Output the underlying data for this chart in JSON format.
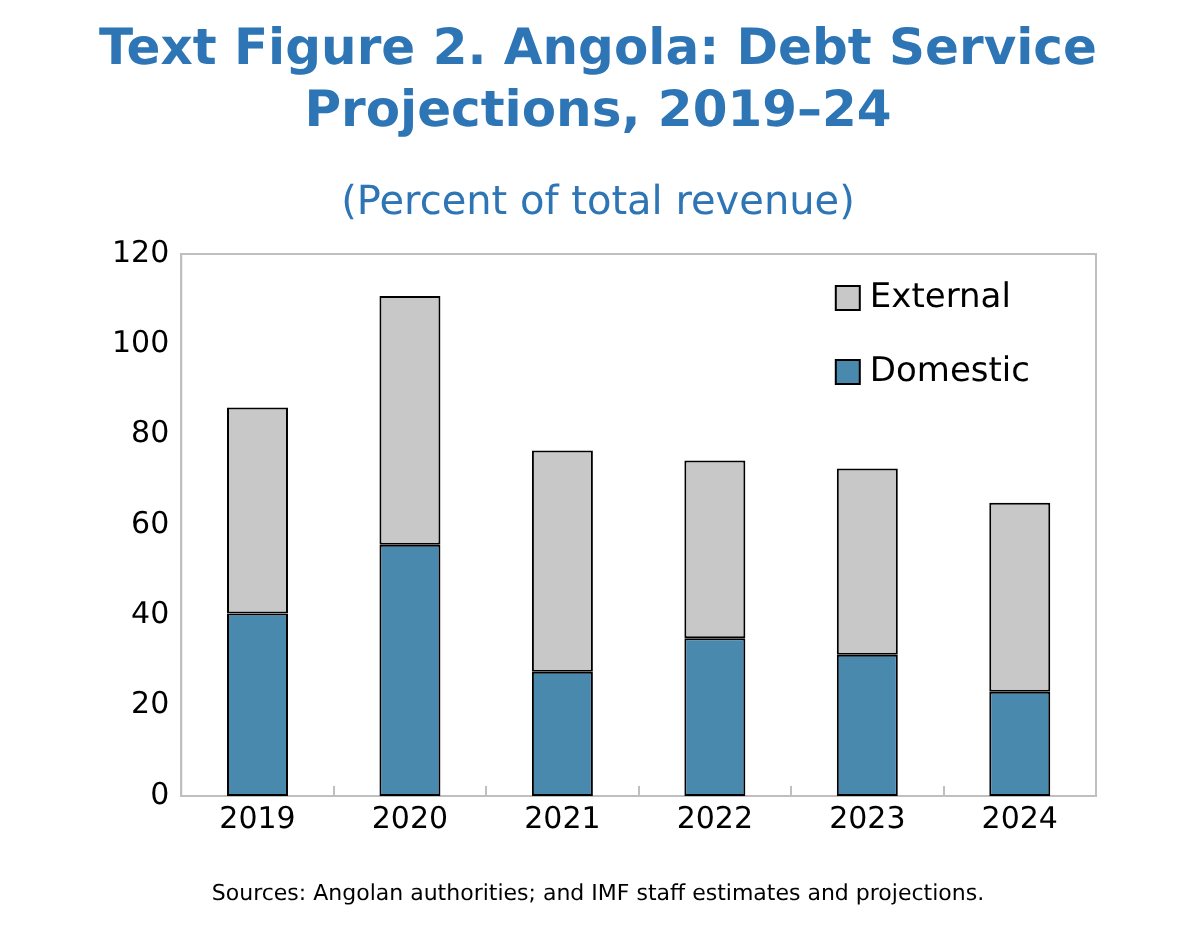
{
  "chart_data": {
    "type": "bar",
    "title": "Text Figure 2. Angola: Debt Service Projections, 2019–24",
    "subtitle": "(Percent of total revenue)",
    "categories": [
      "2019",
      "2020",
      "2021",
      "2022",
      "2023",
      "2024"
    ],
    "stacked": true,
    "series": [
      {
        "name": "Domestic",
        "color": "#4a89ae",
        "values": [
          40.4,
          55.6,
          27.5,
          34.9,
          31.3,
          23.1
        ]
      },
      {
        "name": "External",
        "color": "#c8c8c8",
        "values": [
          45.6,
          55.1,
          49.0,
          39.4,
          41.2,
          41.8
        ]
      }
    ],
    "ylim": [
      0,
      120
    ],
    "yticks": [
      0,
      20,
      40,
      60,
      80,
      100,
      120
    ],
    "grid": false,
    "legend": "top right",
    "annotations": [
      "Sources: Angolan authorities; and IMF staff estimates and projections."
    ]
  }
}
